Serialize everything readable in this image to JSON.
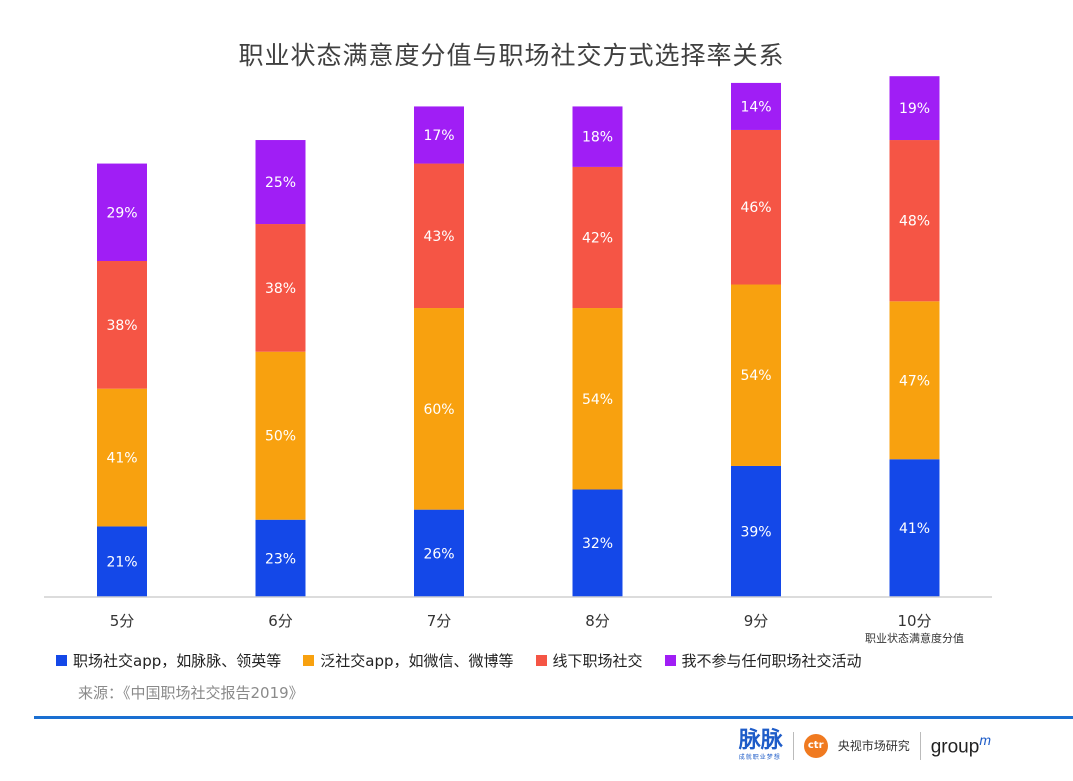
{
  "chart_data": {
    "type": "bar",
    "stacked": true,
    "title": "职业状态满意度分值与职场社交方式选择率关系",
    "categories": [
      "5分",
      "6分",
      "7分",
      "8分",
      "9分",
      "10分"
    ],
    "xlabel": "职业状态满意度分值",
    "ylabel": "",
    "series": [
      {
        "name": "职场社交app，如脉脉、领英等",
        "color": "#1448e8",
        "values": [
          21,
          23,
          26,
          32,
          39,
          41
        ]
      },
      {
        "name": "泛社交app，如微信、微博等",
        "color": "#f8a10f",
        "values": [
          41,
          50,
          60,
          54,
          54,
          47
        ]
      },
      {
        "name": "线下职场社交",
        "color": "#f55545",
        "values": [
          38,
          38,
          43,
          42,
          46,
          48
        ]
      },
      {
        "name": "我不参与任何职场社交活动",
        "color": "#a01ef5",
        "values": [
          29,
          25,
          17,
          18,
          14,
          19
        ]
      }
    ],
    "labels": [
      [
        "21%",
        "23%",
        "26%",
        "32%",
        "39%",
        "41%"
      ],
      [
        "41%",
        "50%",
        "60%",
        "54%",
        "54%",
        "47%"
      ],
      [
        "38%",
        "38%",
        "43%",
        "42%",
        "46%",
        "48%"
      ],
      [
        "29%",
        "25%",
        "17%",
        "18%",
        "14%",
        "19%"
      ]
    ],
    "grid": false,
    "legend_position": "bottom"
  },
  "source": "来源：《中国职场社交报告2019》",
  "footer": {
    "brand1": "脉脉",
    "brand1_sub": "成就职业梦想",
    "brand2_badge": "ctr",
    "brand2": "央视市场研究",
    "brand3": "group",
    "brand3_sup": "m"
  }
}
